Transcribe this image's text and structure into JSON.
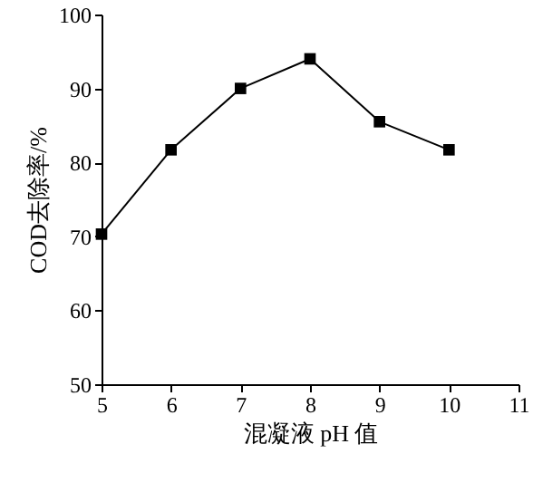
{
  "chart_data": {
    "type": "line",
    "xlabel": "混凝液 pH 值",
    "ylabel": "COD去除率/%",
    "x": [
      5,
      6,
      7,
      8,
      9,
      10
    ],
    "series": [
      {
        "color": "#000000",
        "values": [
          70.3,
          81.7,
          90,
          94,
          85.5,
          81.7
        ]
      }
    ],
    "xlim": [
      5,
      11
    ],
    "xticks": [
      5,
      6,
      7,
      8,
      9,
      10,
      11
    ],
    "ylim": [
      50,
      100
    ],
    "yticks": [
      50,
      60,
      70,
      80,
      90,
      100
    ],
    "grid": false,
    "marker": "square",
    "line_style": "solid"
  }
}
